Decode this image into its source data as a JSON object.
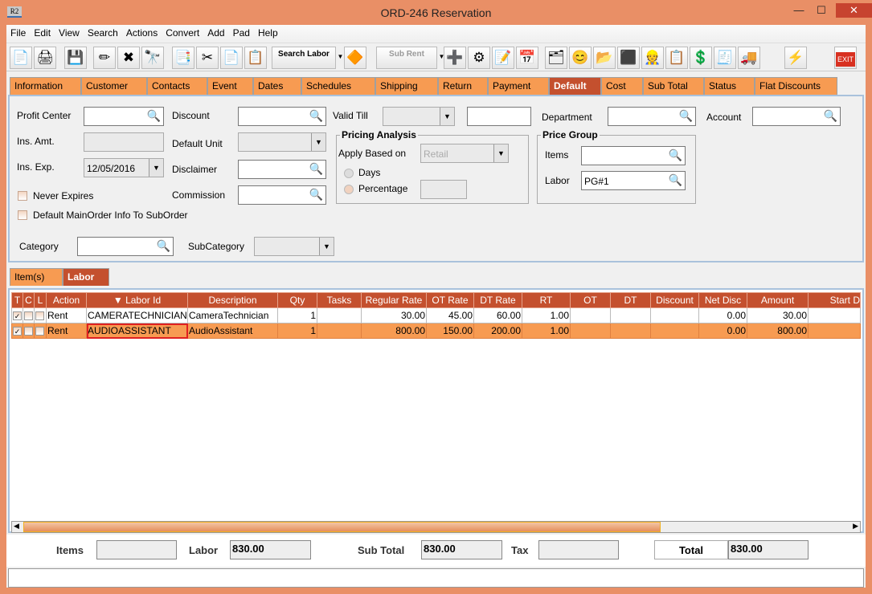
{
  "window": {
    "title": "ORD-246 Reservation",
    "app_icon": "R2",
    "minimize": "—",
    "maximize": "☐",
    "close": "✕"
  },
  "menu": [
    "File",
    "Edit",
    "View",
    "Search",
    "Actions",
    "Convert",
    "Add",
    "Pad",
    "Help"
  ],
  "toolbar": [
    {
      "name": "new-icon",
      "glyph": "📄"
    },
    {
      "name": "print-icon",
      "glyph": "🖨"
    },
    {
      "name": "save-icon",
      "glyph": "💾"
    },
    {
      "name": "edit-icon",
      "glyph": "✏"
    },
    {
      "name": "delete-icon",
      "glyph": "✖"
    },
    {
      "name": "find-icon",
      "glyph": "🔭"
    },
    {
      "name": "export-icon",
      "glyph": "📑"
    },
    {
      "name": "cut-icon",
      "glyph": "✂"
    },
    {
      "name": "copy-icon",
      "glyph": "📄"
    },
    {
      "name": "paste-icon",
      "glyph": "📋"
    },
    {
      "name": "search-labor-button",
      "label": "Search Labor",
      "glyph": "🔍"
    },
    {
      "name": "shapes-icon",
      "glyph": "🔶"
    },
    {
      "name": "sub-rent-button",
      "label": "Sub Rent"
    },
    {
      "name": "add-remove-icon",
      "glyph": "➕"
    },
    {
      "name": "group-icon",
      "glyph": "⚙"
    },
    {
      "name": "notes-icon",
      "glyph": "📝"
    },
    {
      "name": "calendar-icon",
      "glyph": "📅"
    },
    {
      "name": "hierarchy-icon",
      "glyph": "🗂"
    },
    {
      "name": "smiley-icon",
      "glyph": "😊"
    },
    {
      "name": "folder-clock-icon",
      "glyph": "📂"
    },
    {
      "name": "eraser-icon",
      "glyph": "⬛"
    },
    {
      "name": "worker-icon",
      "glyph": "👷"
    },
    {
      "name": "form-edit-icon",
      "glyph": "📋"
    },
    {
      "name": "payment-forward-icon",
      "glyph": "💲"
    },
    {
      "name": "invoice-icon",
      "glyph": "🧾"
    },
    {
      "name": "truck-icon",
      "glyph": "🚚"
    },
    {
      "name": "lightning-icon",
      "glyph": "⚡"
    },
    {
      "name": "exit-icon",
      "glyph": "EXIT"
    }
  ],
  "tabs": [
    "Information",
    "Customer",
    "Contacts",
    "Event",
    "Dates",
    "Schedules",
    "Shipping",
    "Return",
    "Payment",
    "Default",
    "Cost",
    "Sub Total",
    "Status",
    "Flat Discounts"
  ],
  "active_tab": "Default",
  "form": {
    "profit_center": "Profit Center",
    "discount": "Discount",
    "valid_till": "Valid Till",
    "department": "Department",
    "account": "Account",
    "ins_amt": "Ins. Amt.",
    "default_unit": "Default Unit",
    "ins_exp": "Ins. Exp.",
    "ins_exp_value": "12/05/2016",
    "disclaimer": "Disclaimer",
    "commission": "Commission",
    "never_expires": "Never Expires",
    "default_main": "Default MainOrder Info To SubOrder",
    "category": "Category",
    "subcategory": "SubCategory",
    "pricing": {
      "title": "Pricing Analysis",
      "apply_based_on": "Apply Based on",
      "apply_value": "Retail",
      "days": "Days",
      "percentage": "Percentage"
    },
    "price_group": {
      "title": "Price Group",
      "items": "Items",
      "labor": "Labor",
      "labor_value": "PG#1"
    }
  },
  "subtabs": [
    "Item(s)",
    "Labor"
  ],
  "active_subtab": "Labor",
  "grid": {
    "columns": [
      "T",
      "C",
      "L",
      "Action",
      "▼ Labor Id",
      "Description",
      "Qty",
      "Tasks",
      "Regular Rate",
      "OT Rate",
      "DT Rate",
      "RT",
      "OT",
      "DT",
      "Discount",
      "Net Disc",
      "Amount",
      "Start D"
    ],
    "rows": [
      {
        "t": true,
        "c": false,
        "l": false,
        "action": "Rent",
        "labor_id": "CAMERATECHNICIAN",
        "description": "CameraTechnician",
        "qty": "1",
        "tasks": "",
        "regular_rate": "30.00",
        "ot_rate": "45.00",
        "dt_rate": "60.00",
        "rt": "1.00",
        "ot": "",
        "dt": "",
        "discount": "",
        "net_disc": "0.00",
        "amount": "30.00",
        "start": ""
      },
      {
        "t": true,
        "c": false,
        "l": false,
        "action": "Rent",
        "labor_id": "AUDIOASSISTANT",
        "description": "AudioAssistant",
        "qty": "1",
        "tasks": "",
        "regular_rate": "800.00",
        "ot_rate": "150.00",
        "dt_rate": "200.00",
        "rt": "1.00",
        "ot": "",
        "dt": "",
        "discount": "",
        "net_disc": "0.00",
        "amount": "800.00",
        "start": ""
      }
    ],
    "selected_row": 1
  },
  "totals": {
    "items_label": "Items",
    "items": "",
    "labor_label": "Labor",
    "labor": "830.00",
    "subtotal_label": "Sub Total",
    "subtotal": "830.00",
    "tax_label": "Tax",
    "tax": "",
    "total_label": "Total",
    "total": "830.00"
  },
  "colors": {
    "window": "#e98f66",
    "tab": "#f79b52",
    "tab_active": "#c4502e",
    "header": "#c4502e"
  }
}
